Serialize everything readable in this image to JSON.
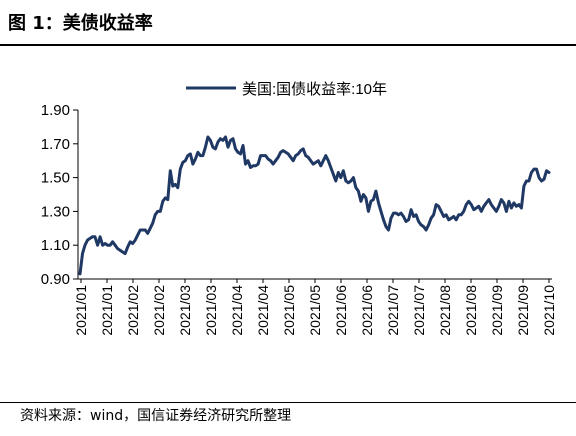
{
  "figure_title": "图 1：美债收益率",
  "source_note": "资料来源：wind，国信证券经济研究所整理",
  "series_color": "#1F3864",
  "chart_data": {
    "type": "line",
    "title": "",
    "xlabel": "",
    "ylabel": "",
    "ylim": [
      0.9,
      1.9
    ],
    "y_ticks": [
      "0.90",
      "1.10",
      "1.30",
      "1.50",
      "1.70",
      "1.90"
    ],
    "x_ticks": [
      "2021/01",
      "2021/01",
      "2021/02",
      "2021/02",
      "2021/03",
      "2021/03",
      "2021/04",
      "2021/04",
      "2021/05",
      "2021/05",
      "2021/06",
      "2021/06",
      "2021/07",
      "2021/07",
      "2021/08",
      "2021/08",
      "2021/09",
      "2021/09",
      "2021/10"
    ],
    "legend": "top-center",
    "grid": false,
    "series": [
      {
        "name": "美国:国债收益率:10年",
        "values": [
          0.93,
          1.05,
          1.1,
          1.13,
          1.14,
          1.15,
          1.15,
          1.1,
          1.15,
          1.1,
          1.11,
          1.1,
          1.1,
          1.12,
          1.1,
          1.08,
          1.07,
          1.06,
          1.05,
          1.09,
          1.12,
          1.11,
          1.13,
          1.16,
          1.19,
          1.19,
          1.19,
          1.17,
          1.2,
          1.23,
          1.28,
          1.3,
          1.3,
          1.36,
          1.38,
          1.37,
          1.54,
          1.45,
          1.46,
          1.44,
          1.55,
          1.59,
          1.6,
          1.63,
          1.64,
          1.58,
          1.61,
          1.65,
          1.63,
          1.63,
          1.68,
          1.74,
          1.72,
          1.68,
          1.67,
          1.71,
          1.73,
          1.72,
          1.74,
          1.68,
          1.72,
          1.73,
          1.67,
          1.65,
          1.64,
          1.69,
          1.58,
          1.6,
          1.56,
          1.57,
          1.57,
          1.58,
          1.63,
          1.63,
          1.63,
          1.61,
          1.6,
          1.58,
          1.6,
          1.62,
          1.65,
          1.66,
          1.65,
          1.64,
          1.62,
          1.6,
          1.63,
          1.64,
          1.66,
          1.67,
          1.63,
          1.62,
          1.6,
          1.58,
          1.59,
          1.6,
          1.57,
          1.6,
          1.63,
          1.6,
          1.56,
          1.52,
          1.48,
          1.53,
          1.5,
          1.54,
          1.48,
          1.47,
          1.48,
          1.5,
          1.44,
          1.42,
          1.36,
          1.4,
          1.38,
          1.3,
          1.36,
          1.37,
          1.42,
          1.35,
          1.3,
          1.25,
          1.21,
          1.19,
          1.26,
          1.29,
          1.29,
          1.28,
          1.29,
          1.27,
          1.24,
          1.25,
          1.31,
          1.27,
          1.28,
          1.24,
          1.22,
          1.21,
          1.19,
          1.22,
          1.26,
          1.28,
          1.34,
          1.33,
          1.3,
          1.27,
          1.28,
          1.25,
          1.26,
          1.27,
          1.25,
          1.28,
          1.28,
          1.3,
          1.34,
          1.36,
          1.34,
          1.31,
          1.32,
          1.33,
          1.3,
          1.33,
          1.35,
          1.37,
          1.34,
          1.32,
          1.3,
          1.33,
          1.37,
          1.35,
          1.3,
          1.36,
          1.32,
          1.35,
          1.33,
          1.34,
          1.32,
          1.45,
          1.48,
          1.48,
          1.53,
          1.55,
          1.55,
          1.5,
          1.48,
          1.49,
          1.54,
          1.53
        ]
      }
    ]
  }
}
